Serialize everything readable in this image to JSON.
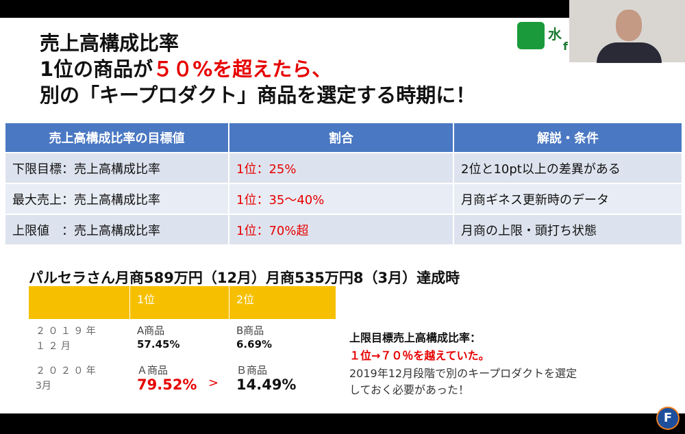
{
  "logo": {
    "text": "水",
    "sub": "f"
  },
  "title": [
    "売上高構成比率",
    [
      "1位の商品が",
      "５０%を超えたら、"
    ],
    "別の「キープロダクト」商品を選定する時期に！"
  ],
  "table1": {
    "header": [
      "売上高構成比率の目標値",
      "割合",
      "解説・条件"
    ],
    "rows": [
      [
        "下限目標：売上高構成比率",
        "1位：25%",
        "2位と10pt以上の差異がある"
      ],
      [
        "最大売上：売上高構成比率",
        "1位：35～40%",
        "月商ギネス更新時のデータ"
      ],
      [
        "上限値　：売上高構成比率",
        "1位：70%超",
        "月商の上限・頭打ち状態"
      ]
    ]
  },
  "subtitle": "パルセラさん月商589万円（12月）月商535万円8（3月）達成時",
  "table2": {
    "header": [
      "1位",
      "2位"
    ],
    "rows": [
      {
        "label": [
          "２ ０ １ ９ 年",
          "１ ２ 月"
        ],
        "cells": [
          [
            "A商品",
            "57.45%"
          ],
          [
            "B商品",
            "6.69%"
          ]
        ]
      },
      {
        "label": [
          "２ ０ ２ ０ 年",
          "3月"
        ],
        "cells": [
          [
            "Ａ商品",
            "79.52%"
          ],
          [
            "Ｂ商品",
            "14.49%"
          ]
        ],
        "compare": ">"
      }
    ]
  },
  "note": [
    "上限目標売上高構成比率：",
    "１位→７０％を越えていた。",
    "2019年12月段階で別のキープロダクトを選定",
    "しておく必要があった！"
  ],
  "badge": "F"
}
